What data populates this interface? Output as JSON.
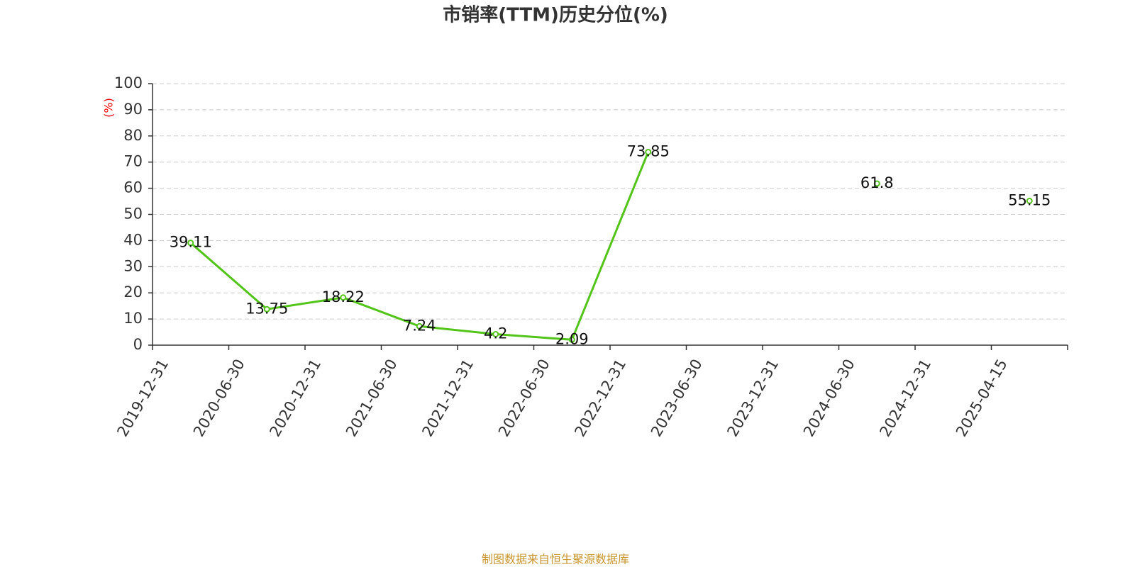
{
  "chart_data": {
    "type": "line",
    "title": "市销率(TTM)历史分位(%)",
    "y_label": "(%)",
    "categories": [
      "2019-12-31",
      "2020-06-30",
      "2020-12-31",
      "2021-06-30",
      "2021-12-31",
      "2022-06-30",
      "2022-12-31",
      "2023-06-30",
      "2023-12-31",
      "2024-06-30",
      "2024-12-31",
      "2025-04-15"
    ],
    "values": [
      39.11,
      13.75,
      18.22,
      7.24,
      4.2,
      2.09,
      73.85,
      null,
      null,
      61.8,
      null,
      55.15
    ],
    "color": "#52c41a",
    "ylim": [
      0,
      100
    ],
    "yticks": [
      0,
      10,
      20,
      30,
      40,
      50,
      60,
      70,
      80,
      90,
      100
    ],
    "grid": true
  },
  "footer": "制图数据来自恒生聚源数据库"
}
